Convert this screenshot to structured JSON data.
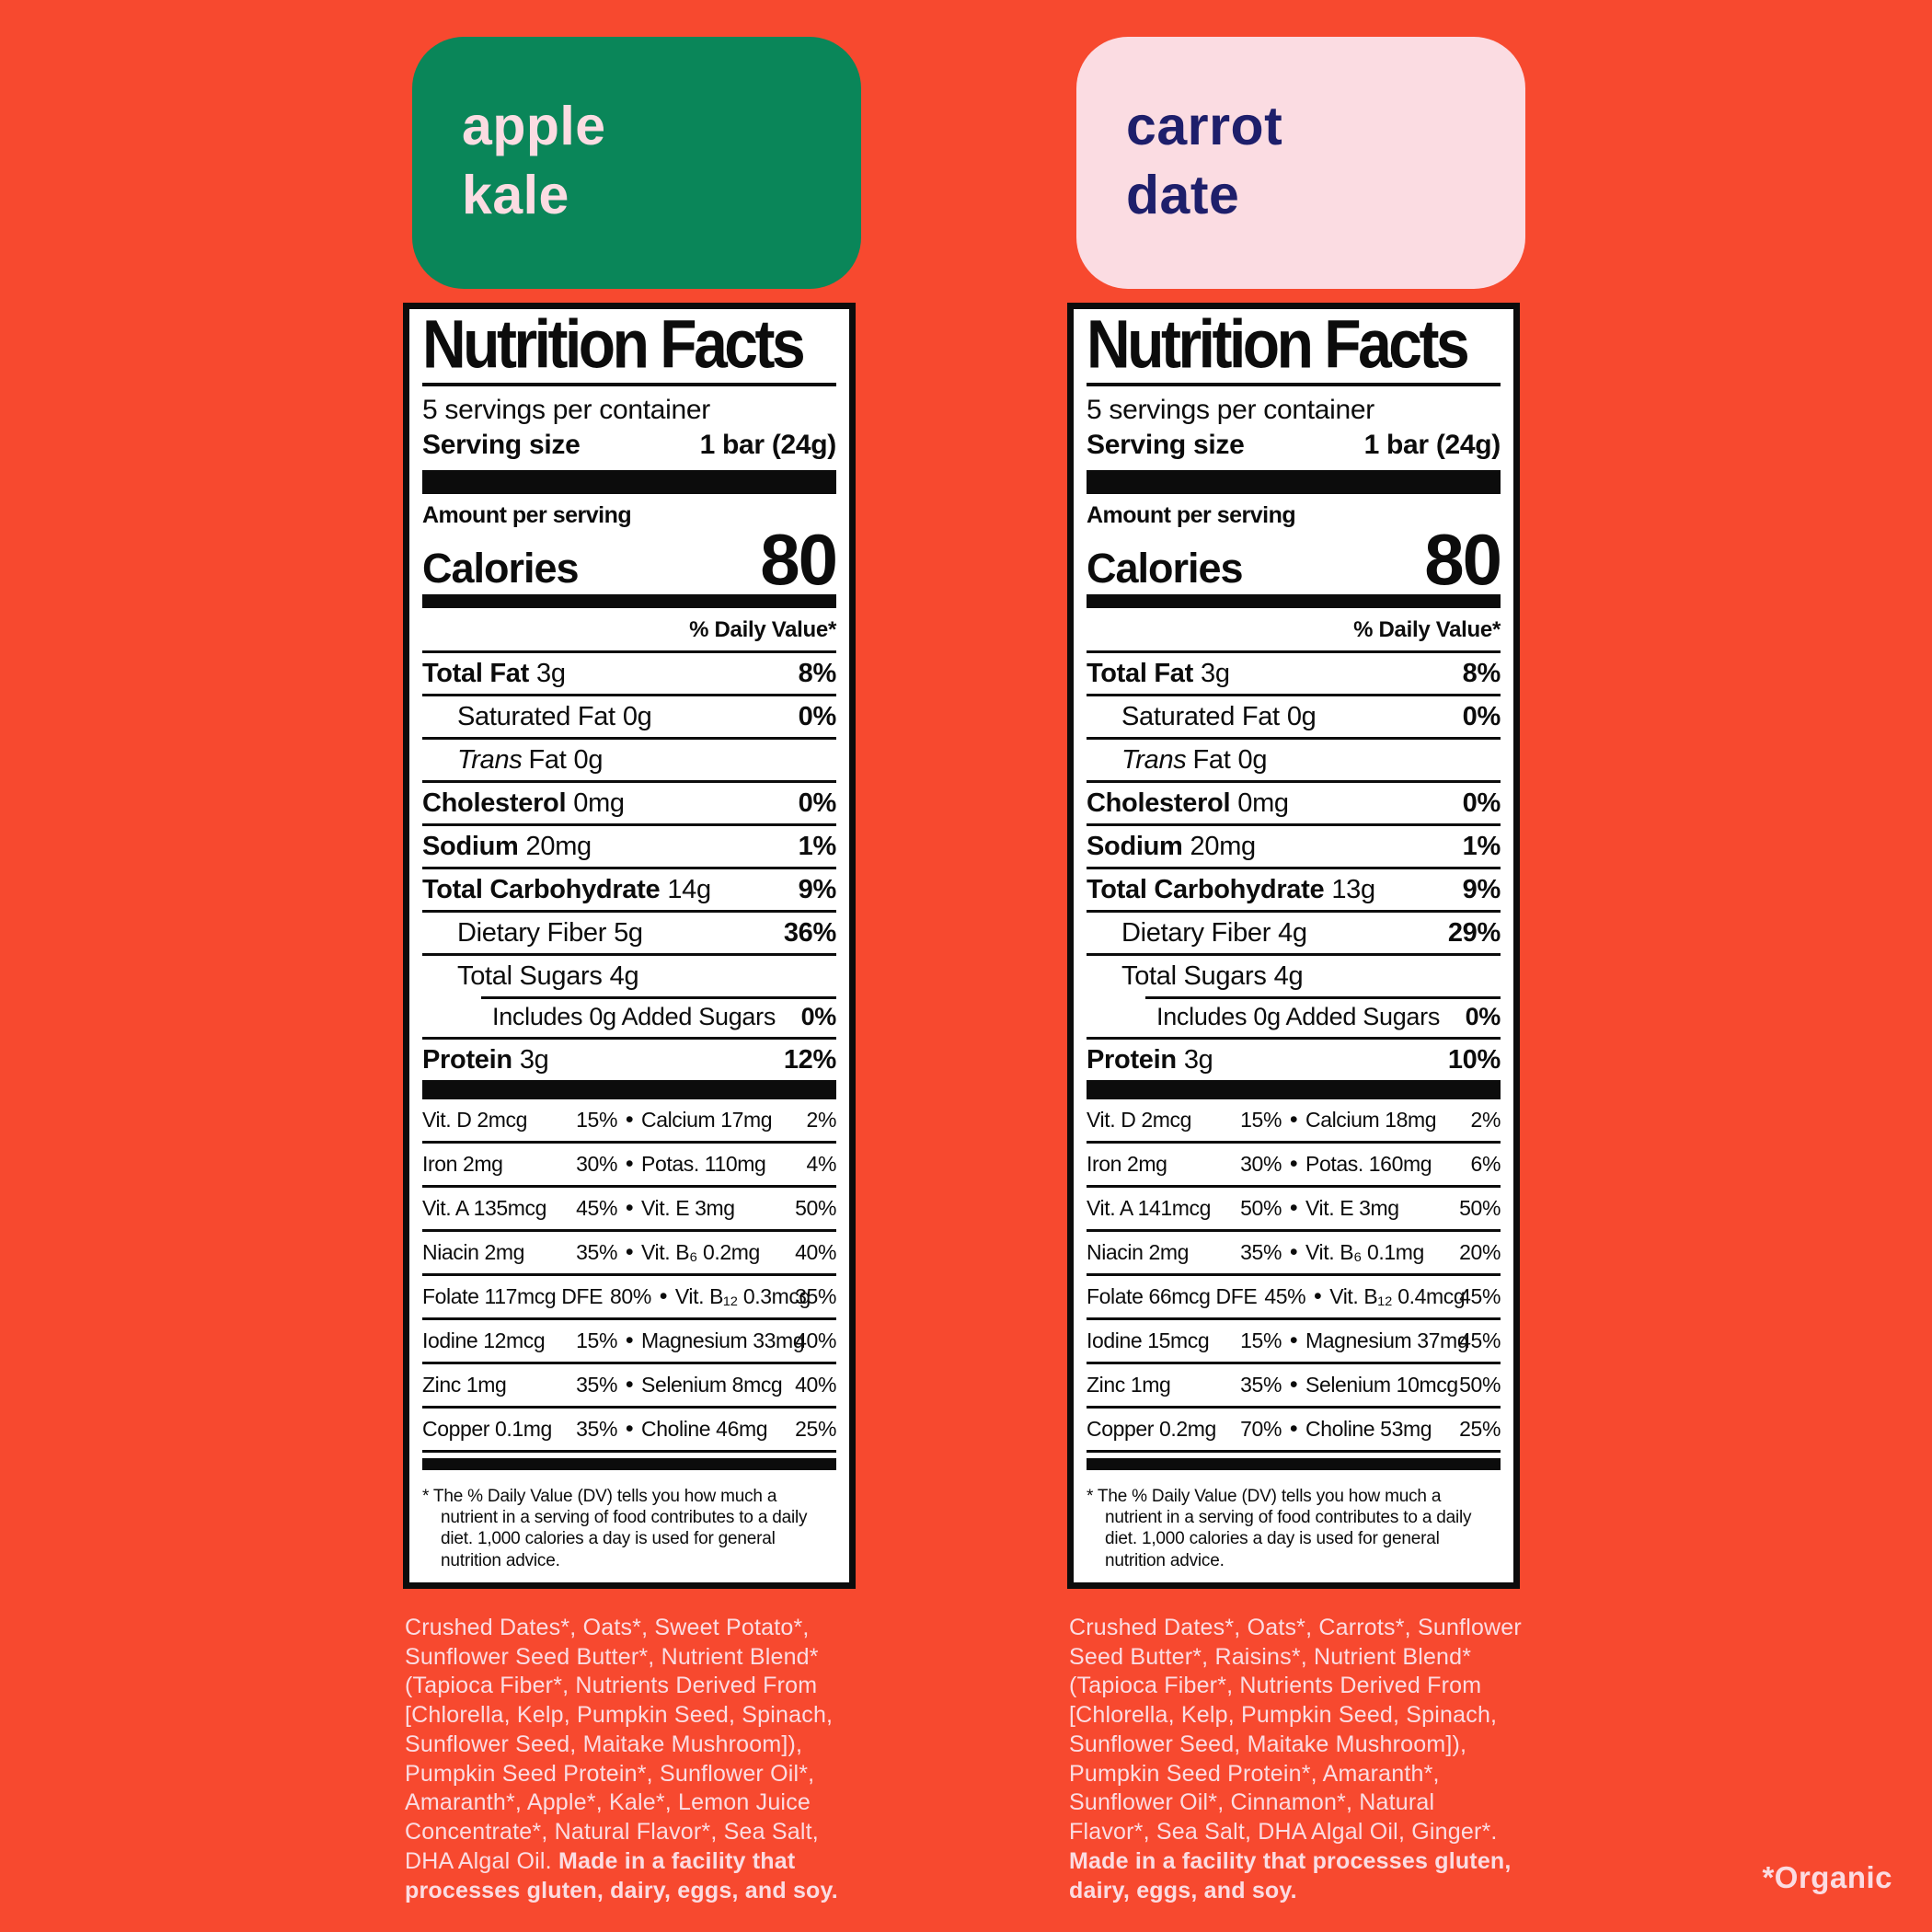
{
  "colors": {
    "background": "#f7492f",
    "card_green": "#0a8659",
    "card_pink": "#fbdce2",
    "title_navy": "#1e1f6b",
    "label_ink": "#0c0c0c",
    "label_bg": "#ffffff"
  },
  "shared": {
    "bullet": "•"
  },
  "organic_note": "*Organic",
  "left": {
    "card": {
      "line1": "apple",
      "line2": "kale"
    },
    "label": {
      "title": "Nutrition Facts",
      "servings_per_container": "5 servings per container",
      "serving_size_label": "Serving size",
      "serving_size_value": "1 bar (24g)",
      "amount_per_serving": "Amount per serving",
      "calories_label": "Calories",
      "calories_value": "80",
      "daily_value_header": "% Daily Value*",
      "rows": [
        {
          "variant": "main",
          "name": "Total Fat",
          "amount": "3g",
          "dv": "8%"
        },
        {
          "variant": "sub",
          "name": "Saturated Fat",
          "amount": "0g",
          "dv": "0%"
        },
        {
          "variant": "sub",
          "name_italic": "Trans",
          "name": "Fat",
          "amount": "0g",
          "dv": ""
        },
        {
          "variant": "main",
          "name": "Cholesterol",
          "amount": "0mg",
          "dv": "0%"
        },
        {
          "variant": "main",
          "name": "Sodium",
          "amount": "20mg",
          "dv": "1%"
        },
        {
          "variant": "main",
          "name": "Total Carbohydrate",
          "amount": "14g",
          "dv": "9%"
        },
        {
          "variant": "sub",
          "name": "Dietary Fiber",
          "amount": "5g",
          "dv": "36%"
        },
        {
          "variant": "sub",
          "name": "Total Sugars",
          "amount": "4g",
          "dv": ""
        },
        {
          "variant": "sub2",
          "name": "Includes 0g Added Sugars",
          "amount": "",
          "dv": "0%"
        },
        {
          "variant": "main",
          "name": "Protein",
          "amount": "3g",
          "dv": "12%"
        }
      ],
      "vitamins": [
        {
          "l": "Vit. D 2mcg",
          "ldv": "15%",
          "r": "Calcium 17mg",
          "rdv": "2%"
        },
        {
          "l": "Iron 2mg",
          "ldv": "30%",
          "r": "Potas. 110mg",
          "rdv": "4%"
        },
        {
          "l": "Vit. A 135mcg",
          "ldv": "45%",
          "r": "Vit. E 3mg",
          "rdv": "50%"
        },
        {
          "l": "Niacin 2mg",
          "ldv": "35%",
          "r": "Vit. B₆ 0.2mg",
          "rdv": "40%"
        },
        {
          "l": "Folate 117mcg DFE",
          "ldv": "80%",
          "r": "Vit. B₁₂ 0.3mcg",
          "rdv": "35%"
        },
        {
          "l": "Iodine 12mcg",
          "ldv": "15%",
          "r": "Magnesium 33mg",
          "rdv": "40%"
        },
        {
          "l": "Zinc 1mg",
          "ldv": "35%",
          "r": "Selenium 8mcg",
          "rdv": "40%"
        },
        {
          "l": "Copper 0.1mg",
          "ldv": "35%",
          "r": "Choline 46mg",
          "rdv": "25%"
        }
      ],
      "footnote": "* The % Daily Value (DV) tells you how much a nutrient in a serving of food contributes to a daily diet. 1,000 calories a day is used for general nutrition advice."
    },
    "ingredients": "Crushed Dates*, Oats*, Sweet Potato*, Sunflower Seed Butter*, Nutrient Blend* (Tapioca Fiber*, Nutrients Derived From [Chlorella, Kelp, Pumpkin Seed, Spinach, Sunflower Seed, Maitake Mushroom]), Pumpkin Seed Protein*, Sunflower Oil*, Amaranth*, Apple*, Kale*, Lemon Juice Concentrate*,  Natural Flavor*, Sea Salt, DHA Algal Oil. ",
    "allergen_note": "Made in a facility that processes gluten, dairy, eggs, and soy."
  },
  "right": {
    "card": {
      "line1": "carrot",
      "line2": "date"
    },
    "label": {
      "title": "Nutrition Facts",
      "servings_per_container": "5 servings per container",
      "serving_size_label": "Serving size",
      "serving_size_value": "1 bar (24g)",
      "amount_per_serving": "Amount per serving",
      "calories_label": "Calories",
      "calories_value": "80",
      "daily_value_header": "% Daily Value*",
      "rows": [
        {
          "variant": "main",
          "name": "Total Fat",
          "amount": "3g",
          "dv": "8%"
        },
        {
          "variant": "sub",
          "name": "Saturated Fat",
          "amount": "0g",
          "dv": "0%"
        },
        {
          "variant": "sub",
          "name_italic": "Trans",
          "name": "Fat",
          "amount": "0g",
          "dv": ""
        },
        {
          "variant": "main",
          "name": "Cholesterol",
          "amount": "0mg",
          "dv": "0%"
        },
        {
          "variant": "main",
          "name": "Sodium",
          "amount": "20mg",
          "dv": "1%"
        },
        {
          "variant": "main",
          "name": "Total Carbohydrate",
          "amount": "13g",
          "dv": "9%"
        },
        {
          "variant": "sub",
          "name": "Dietary Fiber",
          "amount": "4g",
          "dv": "29%"
        },
        {
          "variant": "sub",
          "name": "Total Sugars",
          "amount": "4g",
          "dv": ""
        },
        {
          "variant": "sub2",
          "name": "Includes 0g Added Sugars",
          "amount": "",
          "dv": "0%"
        },
        {
          "variant": "main",
          "name": "Protein",
          "amount": "3g",
          "dv": "10%"
        }
      ],
      "vitamins": [
        {
          "l": "Vit. D 2mcg",
          "ldv": "15%",
          "r": "Calcium 18mg",
          "rdv": "2%"
        },
        {
          "l": "Iron 2mg",
          "ldv": "30%",
          "r": "Potas. 160mg",
          "rdv": "6%"
        },
        {
          "l": "Vit. A 141mcg",
          "ldv": "50%",
          "r": "Vit. E 3mg",
          "rdv": "50%"
        },
        {
          "l": "Niacin 2mg",
          "ldv": "35%",
          "r": "Vit. B₆ 0.1mg",
          "rdv": "20%"
        },
        {
          "l": "Folate 66mcg DFE",
          "ldv": "45%",
          "r": "Vit. B₁₂ 0.4mcg",
          "rdv": "45%"
        },
        {
          "l": "Iodine 15mcg",
          "ldv": "15%",
          "r": "Magnesium 37mg",
          "rdv": "45%"
        },
        {
          "l": "Zinc 1mg",
          "ldv": "35%",
          "r": "Selenium 10mcg",
          "rdv": "50%"
        },
        {
          "l": "Copper 0.2mg",
          "ldv": "70%",
          "r": "Choline 53mg",
          "rdv": "25%"
        }
      ],
      "footnote": "* The % Daily Value (DV) tells you how much a nutrient in a serving of food contributes to a daily diet. 1,000 calories a day is used for general nutrition advice."
    },
    "ingredients": "Crushed Dates*, Oats*, Carrots*, Sunflower Seed Butter*, Raisins*, Nutrient Blend* (Tapioca Fiber*, Nutrients Derived From [Chlorella, Kelp, Pumpkin Seed, Spinach, Sunflower Seed, Maitake Mushroom]), Pumpkin Seed Protein*, Amaranth*, Sunflower Oil*, Cinnamon*, Natural Flavor*, Sea Salt, DHA Algal Oil, Ginger*. ",
    "allergen_note": "Made in a facility that processes gluten, dairy, eggs, and soy."
  }
}
